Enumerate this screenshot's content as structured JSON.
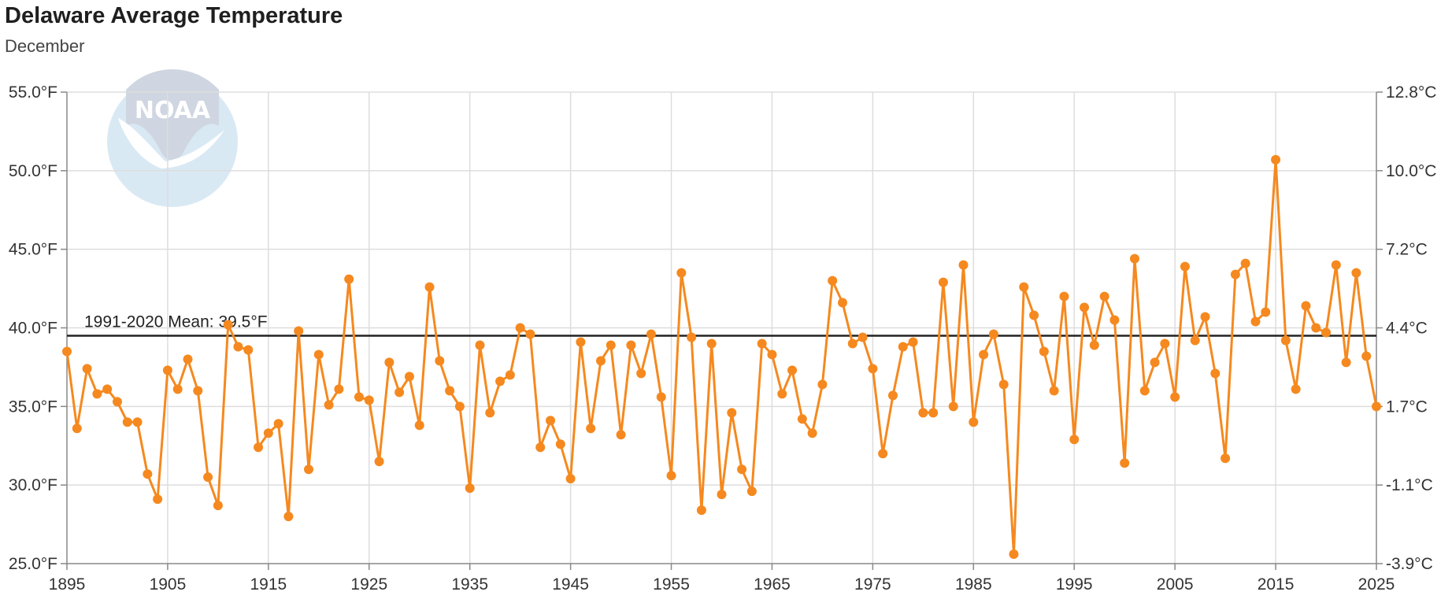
{
  "chart_data": {
    "type": "line",
    "title": "Delaware Average Temperature",
    "subtitle": "December",
    "watermark": "NOAA",
    "x": [
      1895,
      1896,
      1897,
      1898,
      1899,
      1900,
      1901,
      1902,
      1903,
      1904,
      1905,
      1906,
      1907,
      1908,
      1909,
      1910,
      1911,
      1912,
      1913,
      1914,
      1915,
      1916,
      1917,
      1918,
      1919,
      1920,
      1921,
      1922,
      1923,
      1924,
      1925,
      1926,
      1927,
      1928,
      1929,
      1930,
      1931,
      1932,
      1933,
      1934,
      1935,
      1936,
      1937,
      1938,
      1939,
      1940,
      1941,
      1942,
      1943,
      1944,
      1945,
      1946,
      1947,
      1948,
      1949,
      1950,
      1951,
      1952,
      1953,
      1954,
      1955,
      1956,
      1957,
      1958,
      1959,
      1960,
      1961,
      1962,
      1963,
      1964,
      1965,
      1966,
      1967,
      1968,
      1969,
      1970,
      1971,
      1972,
      1973,
      1974,
      1975,
      1976,
      1977,
      1978,
      1979,
      1980,
      1981,
      1982,
      1983,
      1984,
      1985,
      1986,
      1987,
      1988,
      1989,
      1990,
      1991,
      1992,
      1993,
      1994,
      1995,
      1996,
      1997,
      1998,
      1999,
      2000,
      2001,
      2002,
      2003,
      2004,
      2005,
      2006,
      2007,
      2008,
      2009,
      2010,
      2011,
      2012,
      2013,
      2014,
      2015,
      2016,
      2017,
      2018,
      2019,
      2020,
      2021,
      2022,
      2023,
      2024,
      2025
    ],
    "series": [
      {
        "values": [
          38.5,
          33.6,
          37.4,
          35.8,
          36.1,
          35.3,
          34.0,
          34.0,
          30.7,
          29.1,
          37.3,
          36.1,
          38.0,
          36.0,
          30.5,
          28.7,
          40.2,
          38.8,
          38.6,
          32.4,
          33.3,
          33.9,
          28.0,
          39.8,
          31.0,
          38.3,
          35.1,
          36.1,
          43.1,
          35.6,
          35.4,
          31.5,
          37.8,
          35.9,
          36.9,
          33.8,
          42.6,
          37.9,
          36.0,
          35.0,
          29.8,
          38.9,
          34.6,
          36.6,
          37.0,
          40.0,
          39.6,
          32.4,
          34.1,
          32.6,
          30.4,
          39.1,
          33.6,
          37.9,
          38.9,
          33.2,
          38.9,
          37.1,
          39.6,
          35.6,
          30.6,
          43.5,
          39.4,
          28.4,
          39.0,
          29.4,
          34.6,
          31.0,
          29.6,
          39.0,
          38.3,
          35.8,
          37.3,
          34.2,
          33.3,
          36.4,
          43.0,
          41.6,
          39.0,
          39.4,
          37.4,
          32.0,
          35.7,
          38.8,
          39.1,
          34.6,
          34.6,
          42.9,
          35.0,
          44.0,
          34.0,
          38.3,
          39.6,
          36.4,
          25.6,
          42.6,
          40.8,
          38.5,
          36.0,
          42.0,
          32.9,
          41.3,
          38.9,
          42.0,
          40.5,
          31.4,
          44.4,
          36.0,
          37.8,
          39.0,
          35.6,
          43.9,
          39.2,
          40.7,
          37.1,
          31.7,
          43.4,
          44.1,
          40.4,
          41.0,
          50.7,
          39.2,
          36.1,
          41.4,
          40.0,
          39.7,
          44.0,
          37.8,
          43.5,
          38.2,
          35.0
        ]
      }
    ],
    "reference_line": {
      "value": 39.5,
      "label": "1991-2020 Mean: 39.5°F"
    },
    "x_ticks": [
      1895,
      1905,
      1915,
      1925,
      1935,
      1945,
      1955,
      1965,
      1975,
      1985,
      1995,
      2005,
      2015,
      2025
    ],
    "xlim": [
      1895,
      2025
    ],
    "ylim": [
      25,
      55
    ],
    "y_ticks": [
      {
        "value": 25,
        "left": "25.0°F",
        "right": "-3.9°C"
      },
      {
        "value": 30,
        "left": "30.0°F",
        "right": "-1.1°C"
      },
      {
        "value": 35,
        "left": "35.0°F",
        "right": "1.7°C"
      },
      {
        "value": 40,
        "left": "40.0°F",
        "right": "4.4°C"
      },
      {
        "value": 45,
        "left": "45.0°F",
        "right": "7.2°C"
      },
      {
        "value": 50,
        "left": "50.0°F",
        "right": "10.0°C"
      },
      {
        "value": 55,
        "left": "55.0°F",
        "right": "12.8°C"
      }
    ],
    "grid": true,
    "colors": {
      "series": "#f5891f",
      "mean_line": "#222222",
      "grid": "#dddddd",
      "axis": "#888888"
    }
  }
}
